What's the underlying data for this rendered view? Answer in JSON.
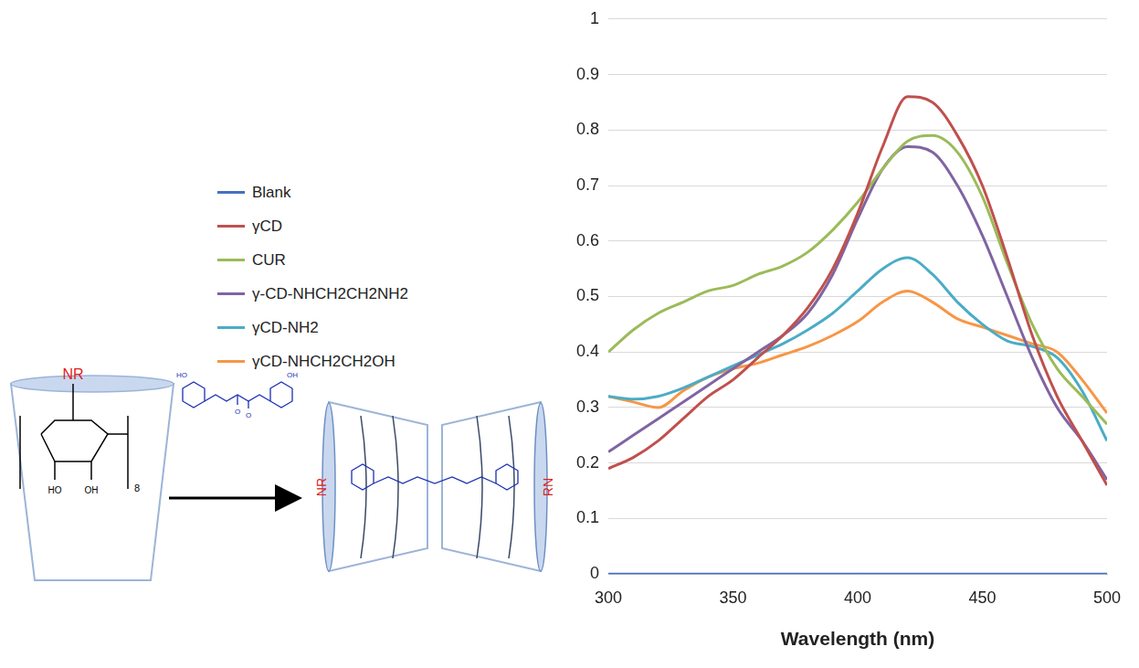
{
  "chart_data": {
    "type": "line",
    "x_label": "Wavelength (nm)",
    "x": [
      300,
      310,
      320,
      330,
      340,
      350,
      360,
      370,
      380,
      390,
      400,
      410,
      420,
      430,
      440,
      450,
      460,
      470,
      480,
      490,
      500
    ],
    "series": [
      {
        "name": "Blank",
        "color": "#4472c4",
        "values": [
          0,
          0,
          0,
          0,
          0,
          0,
          0,
          0,
          0,
          0,
          0,
          0,
          0,
          0,
          0,
          0,
          0,
          0,
          0,
          0,
          0
        ]
      },
      {
        "name": "γCD",
        "color": "#c0504d",
        "values": [
          0.19,
          0.21,
          0.24,
          0.28,
          0.32,
          0.35,
          0.39,
          0.43,
          0.48,
          0.55,
          0.65,
          0.77,
          0.86,
          0.85,
          0.79,
          0.7,
          0.57,
          0.43,
          0.32,
          0.24,
          0.16
        ]
      },
      {
        "name": "CUR",
        "color": "#9bbb59",
        "values": [
          0.4,
          0.44,
          0.47,
          0.49,
          0.51,
          0.52,
          0.54,
          0.555,
          0.58,
          0.62,
          0.67,
          0.73,
          0.78,
          0.79,
          0.76,
          0.68,
          0.56,
          0.45,
          0.37,
          0.32,
          0.27
        ]
      },
      {
        "name": "γ-CD-NHCH2CH2NH2",
        "color": "#8064a2",
        "values": [
          0.22,
          0.25,
          0.28,
          0.31,
          0.34,
          0.37,
          0.4,
          0.43,
          0.47,
          0.54,
          0.64,
          0.73,
          0.77,
          0.76,
          0.7,
          0.61,
          0.5,
          0.39,
          0.3,
          0.24,
          0.17
        ]
      },
      {
        "name": "γCD-NH2",
        "color": "#4bacc6",
        "values": [
          0.32,
          0.315,
          0.32,
          0.335,
          0.355,
          0.375,
          0.395,
          0.415,
          0.44,
          0.47,
          0.51,
          0.55,
          0.57,
          0.54,
          0.49,
          0.45,
          0.42,
          0.41,
          0.39,
          0.33,
          0.24
        ]
      },
      {
        "name": "γCD-NHCH2CH2OH",
        "color": "#f79646",
        "values": [
          0.32,
          0.31,
          0.3,
          0.33,
          0.355,
          0.37,
          0.38,
          0.395,
          0.41,
          0.43,
          0.455,
          0.49,
          0.51,
          0.49,
          0.46,
          0.445,
          0.43,
          0.415,
          0.4,
          0.35,
          0.29
        ]
      }
    ],
    "xlim": [
      300,
      500
    ],
    "xticks": [
      300,
      350,
      400,
      450,
      500
    ],
    "ylim": [
      0,
      1
    ],
    "yticks": [
      0,
      0.1,
      0.2,
      0.3,
      0.4,
      0.5,
      0.6,
      0.7,
      0.8,
      0.9,
      1
    ],
    "grid": true,
    "legend": "left"
  },
  "scheme": {
    "host": {
      "substituent": "NR",
      "repeat": "8",
      "hydroxyls": [
        "HO",
        "OH"
      ]
    },
    "guest": {
      "labels": [
        "HO",
        "O",
        "O",
        "OH"
      ]
    },
    "complex": {
      "labels": [
        "NR",
        "RN"
      ]
    }
  }
}
